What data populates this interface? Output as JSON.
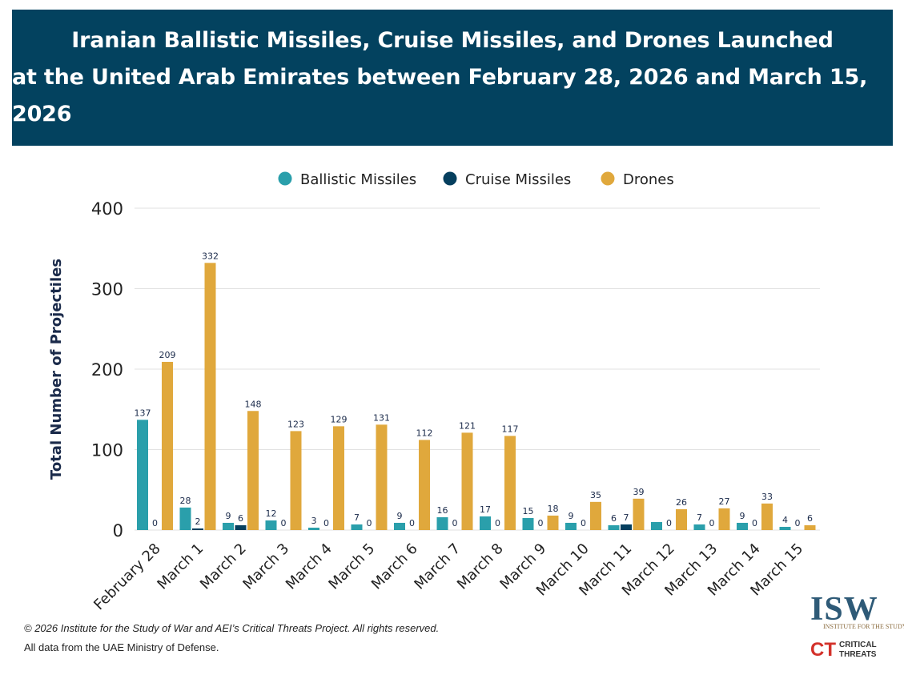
{
  "header": {
    "title_line1": "Iranian Ballistic Missiles, Cruise Missiles, and Drones Launched",
    "title_line2": "at the United Arab Emirates between February 28, 2026 and March 15, 2026"
  },
  "colors": {
    "header_bg": "#03425f",
    "ballistic": "#2a9fab",
    "cruise": "#053f5e",
    "drones": "#e0a83c"
  },
  "chart_data": {
    "type": "bar",
    "title": "Iranian Ballistic Missiles, Cruise Missiles, and Drones Launched at the United Arab Emirates between February 28, 2026 and March 15, 2026",
    "xlabel": "",
    "ylabel": "Total Number of Projectiles",
    "ylim": [
      0,
      400
    ],
    "yticks": [
      0,
      100,
      200,
      300,
      400
    ],
    "legend_position": "top",
    "categories": [
      "February 28",
      "March 1",
      "March 2",
      "March 3",
      "March 4",
      "March 5",
      "March 6",
      "March 7",
      "March 8",
      "March 9",
      "March 10",
      "March 11",
      "March 12",
      "March 13",
      "March 14",
      "March 15"
    ],
    "series": [
      {
        "name": "Ballistic Missiles",
        "color": "#2a9fab",
        "values": [
          137,
          28,
          9,
          12,
          3,
          7,
          9,
          16,
          17,
          15,
          9,
          6,
          10,
          7,
          9,
          4
        ],
        "labels": [
          "137",
          "28",
          "9",
          "12",
          "3",
          "7",
          "9",
          "16",
          "17",
          "15",
          "9",
          "6",
          "",
          "7",
          "9",
          "4"
        ]
      },
      {
        "name": "Cruise Missiles",
        "color": "#053f5e",
        "values": [
          0,
          2,
          6,
          0,
          0,
          0,
          0,
          0,
          0,
          0,
          0,
          7,
          0,
          0,
          0,
          0
        ],
        "labels": [
          "0",
          "2",
          "6",
          "0",
          "0",
          "0",
          "0",
          "0",
          "0",
          "0",
          "0",
          "7",
          "0",
          "0",
          "0",
          "0"
        ]
      },
      {
        "name": "Drones",
        "color": "#e0a83c",
        "values": [
          209,
          332,
          148,
          123,
          129,
          131,
          112,
          121,
          117,
          18,
          35,
          39,
          26,
          27,
          33,
          6
        ],
        "labels": [
          "209",
          "332",
          "148",
          "123",
          "129",
          "131",
          "112",
          "121",
          "117",
          "18",
          "35",
          "39",
          "26",
          "27",
          "33",
          "6"
        ]
      }
    ]
  },
  "footer": {
    "copyright": "© 2026 Institute for the Study of War and AEI’s Critical Threats Project. All rights reserved.",
    "source": "All data from the UAE Ministry of Defense."
  },
  "logos": {
    "isw_mark": "ISW",
    "isw_sub": "INSTITUTE FOR THE STUDY OF WAR",
    "ct_mark": "CT",
    "ct_line1": "CRITICAL",
    "ct_line2": "THREATS"
  }
}
